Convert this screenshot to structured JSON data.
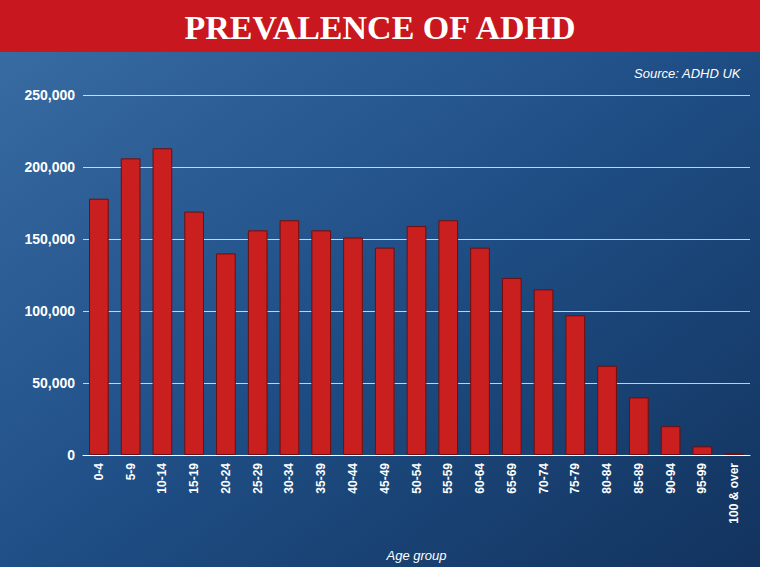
{
  "chart_data": {
    "type": "bar",
    "title": "PREVALENCE OF ADHD",
    "subtitle": "Source: ADHD UK",
    "x_label": "Age group",
    "categories": [
      "0-4",
      "5-9",
      "10-14",
      "15-19",
      "20-24",
      "25-29",
      "30-34",
      "35-39",
      "40-44",
      "45-49",
      "50-54",
      "55-59",
      "60-64",
      "65-69",
      "70-74",
      "75-79",
      "80-84",
      "85-89",
      "90-94",
      "95-99",
      "100 & over"
    ],
    "values": [
      178000,
      206000,
      213000,
      169000,
      140000,
      156000,
      163000,
      156000,
      151000,
      144000,
      159000,
      163000,
      144000,
      123000,
      115000,
      97000,
      62000,
      40000,
      20000,
      6000,
      1500
    ],
    "color": "#c9201f",
    "ylim": [
      0,
      250000
    ],
    "yticks": [
      0,
      {
        "value": 50000,
        "label": "50,000"
      },
      {
        "value": 100000,
        "label": "100,000"
      },
      {
        "value": 150000,
        "label": "150,000"
      },
      {
        "value": 200000,
        "label": "200,000"
      },
      {
        "value": 250000,
        "label": "250,000"
      }
    ],
    "grid": true
  }
}
